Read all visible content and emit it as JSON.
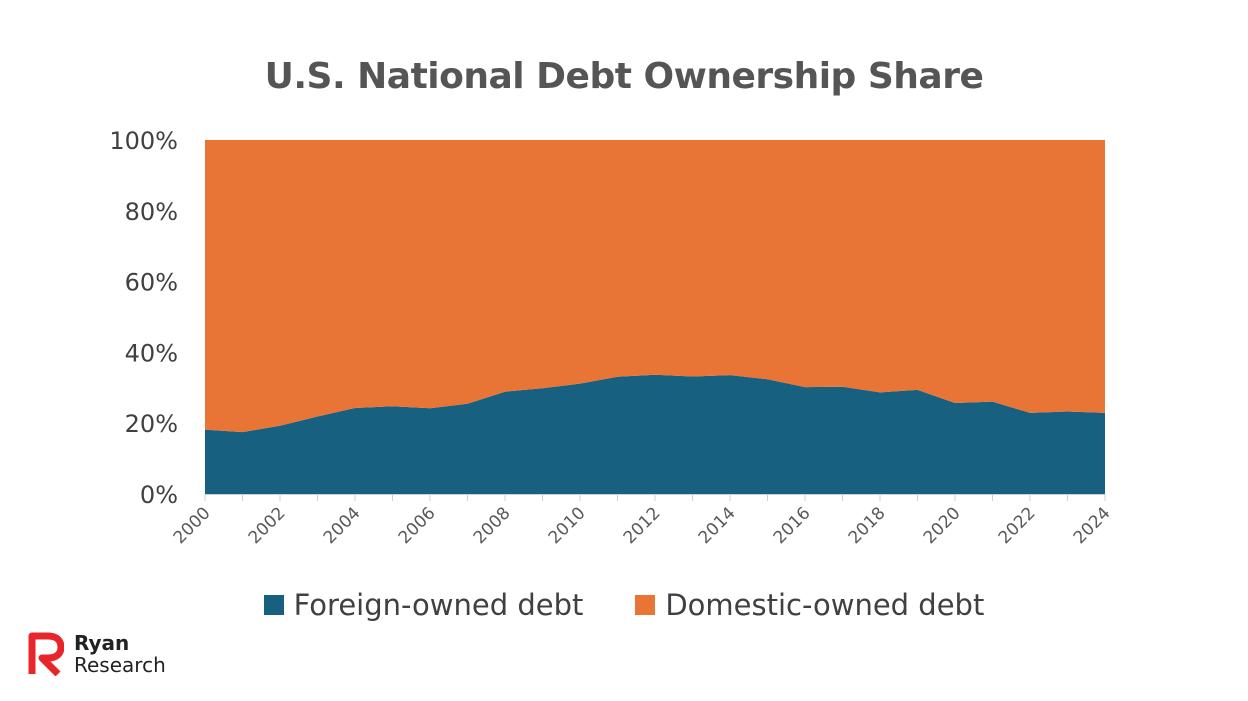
{
  "chart_data": {
    "type": "area",
    "title": "U.S. National Debt Ownership Share",
    "stacked": "percent",
    "x": [
      2000,
      2001,
      2002,
      2003,
      2004,
      2005,
      2006,
      2007,
      2008,
      2009,
      2010,
      2011,
      2012,
      2013,
      2014,
      2015,
      2016,
      2017,
      2018,
      2019,
      2020,
      2021,
      2022,
      2023,
      2024
    ],
    "x_tick_labels": [
      "2000",
      "2002",
      "2004",
      "2006",
      "2008",
      "2010",
      "2012",
      "2014",
      "2016",
      "2018",
      "2020",
      "2022",
      "2024"
    ],
    "y_tick_labels": [
      "0%",
      "20%",
      "40%",
      "60%",
      "80%",
      "100%"
    ],
    "ylim": [
      0,
      100
    ],
    "series": [
      {
        "name": "Foreign-owned debt",
        "color": "#17607f",
        "values": [
          18.2,
          17.5,
          19.3,
          21.9,
          24.3,
          24.8,
          24.2,
          25.5,
          28.9,
          29.9,
          31.2,
          33.1,
          33.7,
          33.2,
          33.6,
          32.4,
          30.2,
          30.3,
          28.7,
          29.4,
          25.7,
          26.1,
          22.9,
          23.3,
          22.9
        ]
      },
      {
        "name": "Domestic-owned debt",
        "color": "#e87435",
        "values": [
          81.8,
          82.5,
          80.7,
          78.1,
          75.7,
          75.2,
          75.8,
          74.5,
          71.1,
          70.1,
          68.8,
          66.9,
          66.3,
          66.8,
          66.4,
          67.6,
          69.8,
          69.7,
          71.3,
          70.6,
          74.3,
          73.9,
          77.1,
          76.7,
          77.1
        ]
      }
    ],
    "grid": false,
    "legend_position": "bottom"
  },
  "brand": {
    "line1": "Ryan",
    "line2": "Research",
    "color": "#e8252a"
  }
}
